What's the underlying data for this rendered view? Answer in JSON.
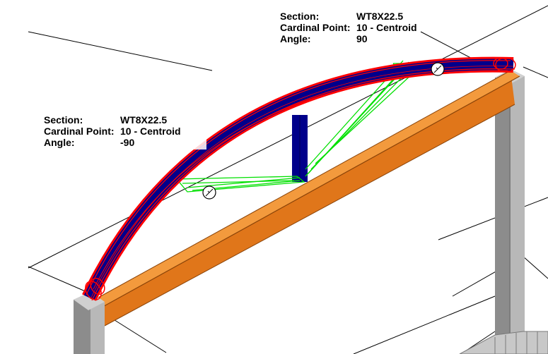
{
  "labels": [
    {
      "section_key": "Section:",
      "section_value": "WT8X22.5",
      "cardinal_key": "Cardinal Point:",
      "cardinal_value": "10 - Centroid",
      "angle_key": "Angle:",
      "angle_value": "90"
    },
    {
      "section_key": "Section:",
      "section_value": "WT8X22.5",
      "cardinal_key": "Cardinal Point:",
      "cardinal_value": "10 - Centroid",
      "angle_key": "Angle:",
      "angle_value": "-90"
    }
  ],
  "colors": {
    "arch_fill": "#00008b",
    "arch_outline": "#ff0000",
    "beam_orange": "#e0761a",
    "column_gray": "#a8a8a8",
    "brace_green": "#00e000",
    "grid_line": "#000000"
  },
  "icons": {
    "release_marker": "release-marker-icon"
  }
}
